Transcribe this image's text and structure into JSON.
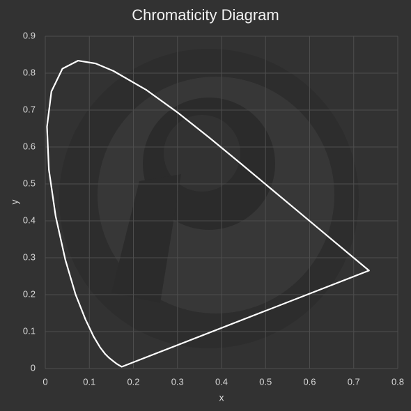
{
  "chart_data": {
    "type": "line",
    "title": "Chromaticity Diagram",
    "x_label": "x",
    "y_label": "y",
    "x": [
      0.1741,
      0.1733,
      0.1644,
      0.1566,
      0.144,
      0.1355,
      0.1241,
      0.1096,
      0.0913,
      0.0687,
      0.0454,
      0.0235,
      0.0082,
      0.0039,
      0.0139,
      0.0389,
      0.0743,
      0.1142,
      0.1547,
      0.2296,
      0.3016,
      0.3731,
      0.4441,
      0.5125,
      0.5752,
      0.627,
      0.6915,
      0.719,
      0.7347,
      0.1741
    ],
    "values": [
      0.005,
      0.0048,
      0.0109,
      0.0177,
      0.0297,
      0.0399,
      0.0578,
      0.0868,
      0.1327,
      0.2007,
      0.295,
      0.4127,
      0.5384,
      0.6548,
      0.7502,
      0.812,
      0.8338,
      0.8262,
      0.8059,
      0.7543,
      0.6923,
      0.6245,
      0.5547,
      0.4866,
      0.4242,
      0.3725,
      0.3083,
      0.2809,
      0.2653,
      0.005
    ],
    "color": "#ffffff",
    "xlim": [
      0,
      0.8
    ],
    "xticks": [
      0,
      0.1,
      0.2,
      0.3,
      0.4,
      0.5,
      0.6,
      0.7,
      0.8
    ],
    "ylim": [
      0,
      0.9
    ],
    "yticks": [
      0,
      0.1,
      0.2,
      0.3,
      0.4,
      0.5,
      0.6,
      0.7,
      0.8,
      0.9
    ],
    "grid": true
  }
}
